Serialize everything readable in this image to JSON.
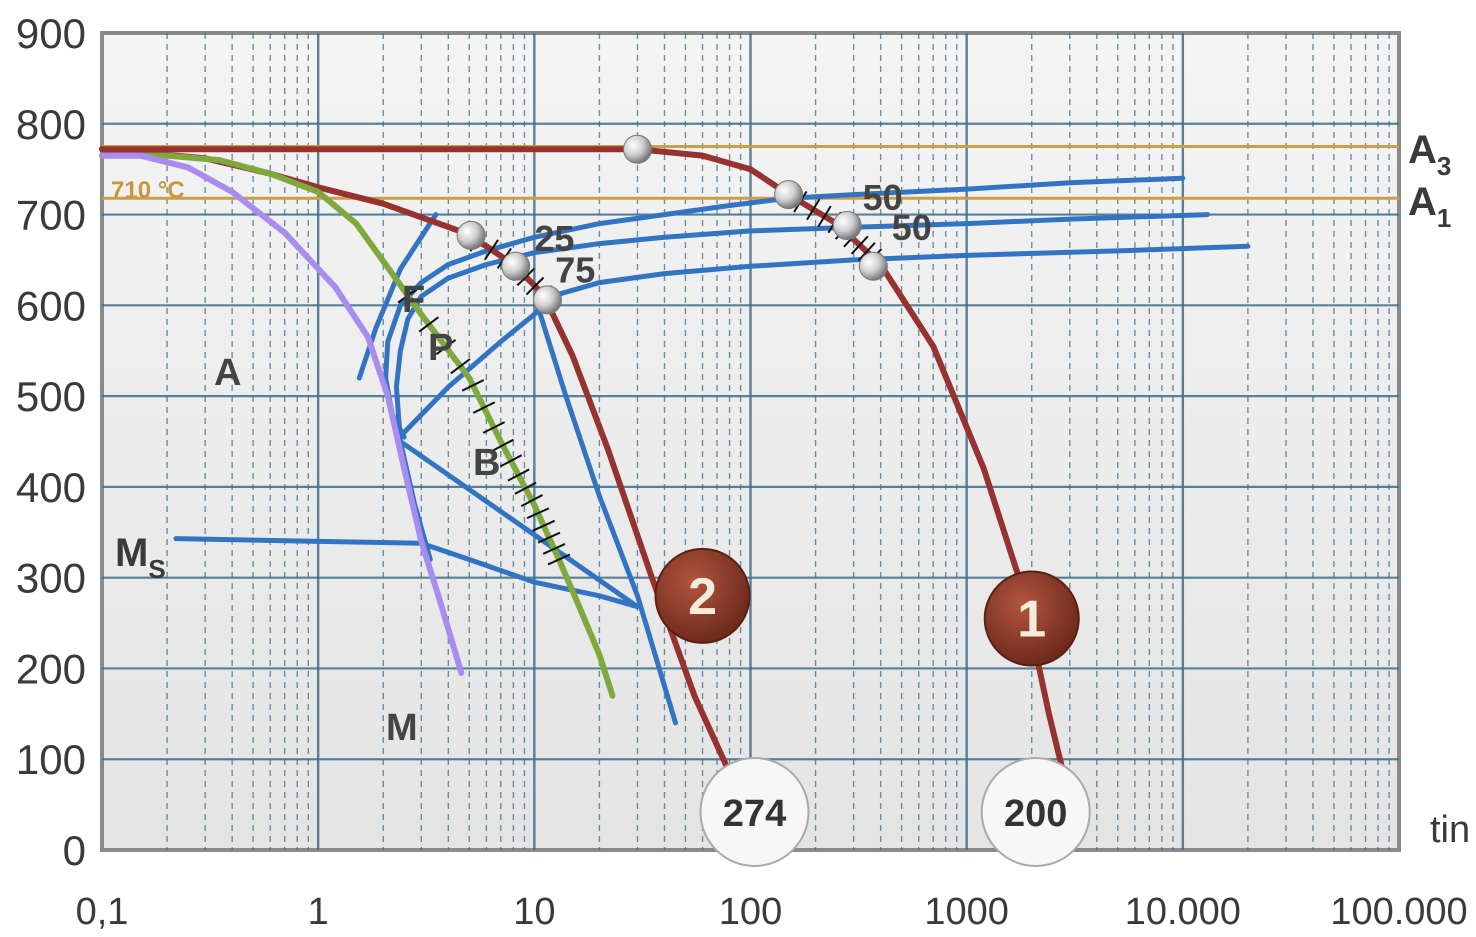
{
  "chart_data": {
    "type": "line",
    "x_scale": "log",
    "xlim": [
      0.1,
      100000
    ],
    "ylim": [
      0,
      900
    ],
    "grid": true,
    "x_ticks": [
      "0,1",
      "1",
      "10",
      "100",
      "1000",
      "10.000",
      "100.000"
    ],
    "y_ticks": [
      "0",
      "100",
      "200",
      "300",
      "400",
      "500",
      "600",
      "700",
      "800",
      "900"
    ],
    "x_unit_label": "tin",
    "lines_horizontal": [
      {
        "name": "A3",
        "y": 775,
        "color": "#c9a04a"
      },
      {
        "name": "A1",
        "y": 718,
        "color": "#c9a04a"
      }
    ],
    "annotation_temp": "710 °C",
    "region_labels": {
      "austenite": "A",
      "ferrite": "F",
      "pearlite": "P",
      "bainite": "B",
      "martensite": "M"
    },
    "ms_label": "M",
    "ms_sub": "S",
    "a3_label": "A",
    "a3_sub": "3",
    "a1_label": "A",
    "a1_sub": "1",
    "series": [
      {
        "type": "ttt",
        "color": "#3274c2",
        "points": [
          [
            3.5,
            700
          ],
          [
            2.4,
            640
          ],
          [
            1.85,
            575
          ],
          [
            1.55,
            520
          ]
        ]
      },
      {
        "type": "ttt",
        "color": "#3274c2",
        "points": [
          [
            10000,
            740
          ],
          [
            3000,
            735
          ],
          [
            1000,
            728
          ],
          [
            300,
            722
          ],
          [
            150,
            718
          ],
          [
            80,
            710
          ],
          [
            40,
            700
          ],
          [
            20,
            690
          ],
          [
            10,
            675
          ],
          [
            6,
            660
          ],
          [
            4,
            645
          ],
          [
            3,
            625
          ],
          [
            2.4,
            600
          ],
          [
            2.1,
            560
          ],
          [
            2.05,
            520
          ],
          [
            2.2,
            480
          ],
          [
            2.5,
            455
          ]
        ]
      },
      {
        "type": "ttt",
        "color": "#3274c2",
        "points": [
          [
            13000,
            700
          ],
          [
            3000,
            695
          ],
          [
            1000,
            690
          ],
          [
            300,
            686
          ],
          [
            100,
            682
          ],
          [
            40,
            675
          ],
          [
            20,
            668
          ],
          [
            10,
            658
          ],
          [
            6,
            645
          ],
          [
            4,
            630
          ],
          [
            3,
            610
          ],
          [
            2.6,
            585
          ],
          [
            2.4,
            550
          ],
          [
            2.3,
            510
          ],
          [
            2.4,
            450
          ]
        ]
      },
      {
        "type": "ttt",
        "color": "#3274c2",
        "points": [
          [
            20000,
            665
          ],
          [
            5000,
            660
          ],
          [
            1000,
            655
          ],
          [
            300,
            650
          ],
          [
            100,
            643
          ],
          [
            40,
            635
          ],
          [
            20,
            625
          ],
          [
            12,
            610
          ],
          [
            10,
            590
          ],
          [
            7,
            560
          ],
          [
            4,
            510
          ],
          [
            2.5,
            460
          ]
        ]
      },
      {
        "type": "ttt",
        "color": "#3274c2",
        "points": [
          [
            10.5,
            595
          ],
          [
            14,
            500
          ],
          [
            20,
            390
          ],
          [
            30,
            280
          ],
          [
            45,
            140
          ]
        ]
      },
      {
        "type": "ttt",
        "color": "#3274c2",
        "points": [
          [
            0.22,
            343
          ],
          [
            1,
            340
          ],
          [
            3,
            338
          ],
          [
            5,
            320
          ],
          [
            10,
            295
          ],
          [
            20,
            280
          ],
          [
            30,
            268
          ],
          [
            2.4,
            450
          ],
          [
            2.8,
            380
          ],
          [
            3.3,
            320
          ]
        ]
      },
      {
        "type": "cooling",
        "color": "#963330",
        "points": [
          [
            0.1,
            772
          ],
          [
            0.3,
            762
          ],
          [
            0.6,
            745
          ],
          [
            1,
            730
          ],
          [
            2,
            712
          ],
          [
            3,
            697
          ],
          [
            4.5,
            682
          ],
          [
            6,
            665
          ],
          [
            8,
            645
          ],
          [
            11,
            612
          ],
          [
            15,
            545
          ],
          [
            22,
            440
          ],
          [
            35,
            300
          ],
          [
            55,
            170
          ],
          [
            80,
            85
          ]
        ]
      },
      {
        "type": "cooling",
        "color": "#963330",
        "points": [
          [
            0.1,
            772
          ],
          [
            1,
            772
          ],
          [
            10,
            772
          ],
          [
            30,
            772
          ],
          [
            60,
            765
          ],
          [
            100,
            750
          ],
          [
            150,
            722
          ],
          [
            250,
            690
          ],
          [
            400,
            645
          ],
          [
            700,
            555
          ],
          [
            1200,
            420
          ],
          [
            1800,
            290
          ],
          [
            2400,
            150
          ],
          [
            2800,
            85
          ]
        ]
      },
      {
        "type": "cooling",
        "color": "#7fa83d",
        "points": [
          [
            0.1,
            765
          ],
          [
            0.2,
            765
          ],
          [
            0.35,
            760
          ],
          [
            0.6,
            745
          ],
          [
            1,
            725
          ],
          [
            1.5,
            690
          ],
          [
            2.2,
            635
          ],
          [
            3,
            590
          ],
          [
            5,
            520
          ],
          [
            7,
            450
          ],
          [
            10,
            380
          ],
          [
            13,
            320
          ],
          [
            16,
            270
          ],
          [
            20,
            215
          ],
          [
            23,
            170
          ]
        ]
      },
      {
        "type": "cooling",
        "color": "#a98cf0",
        "points": [
          [
            0.1,
            765
          ],
          [
            0.15,
            765
          ],
          [
            0.25,
            752
          ],
          [
            0.4,
            725
          ],
          [
            0.7,
            680
          ],
          [
            1.2,
            620
          ],
          [
            1.7,
            565
          ],
          [
            2.1,
            500
          ],
          [
            2.5,
            420
          ],
          [
            3,
            340
          ],
          [
            3.6,
            280
          ],
          [
            4.6,
            195
          ]
        ]
      }
    ],
    "transform_points": [
      [
        30,
        772
      ],
      [
        150,
        722
      ],
      [
        280,
        688
      ],
      [
        370,
        643
      ],
      [
        5.1,
        677
      ],
      [
        8.2,
        643
      ],
      [
        11.5,
        606
      ]
    ],
    "percent_labels": [
      {
        "text": "25",
        "x": 10,
        "y": 660
      },
      {
        "text": "75",
        "x": 12.5,
        "y": 625
      },
      {
        "text": "50",
        "x": 330,
        "y": 705
      },
      {
        "text": "50",
        "x": 450,
        "y": 672
      }
    ],
    "end_values": [
      {
        "text": "274",
        "x": 100
      },
      {
        "text": "200",
        "x": 2000
      }
    ],
    "badges": [
      {
        "text": "2",
        "x": 60,
        "y": 280
      },
      {
        "text": "1",
        "x": 2000,
        "y": 255
      }
    ]
  }
}
